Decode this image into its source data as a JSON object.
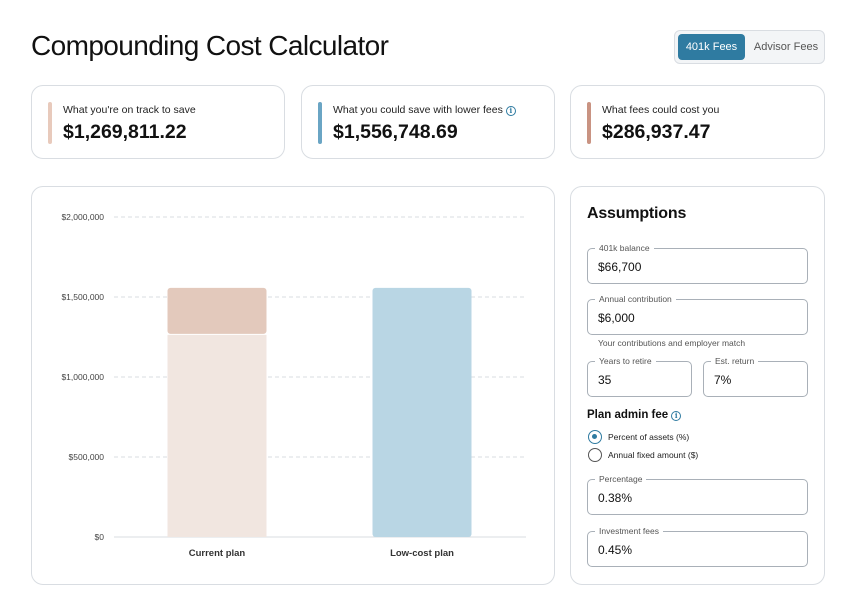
{
  "header": {
    "title": "Compounding Cost Calculator",
    "tabs": [
      {
        "label": "401k Fees",
        "active": true
      },
      {
        "label": "Advisor Fees",
        "active": false
      }
    ]
  },
  "summary": [
    {
      "label": "What you're on track to save",
      "value": "$1,269,811.22",
      "accent": "#e8cabc"
    },
    {
      "label": "What you could save with lower fees",
      "value": "$1,556,748.69",
      "accent": "#6aa5c4",
      "info_icon": "info-icon"
    },
    {
      "label": "What fees could cost you",
      "value": "$286,937.47",
      "accent": "#c99382"
    }
  ],
  "chart_data": {
    "type": "bar",
    "stacked": true,
    "categories": [
      "Current plan",
      "Low-cost plan"
    ],
    "series": [
      {
        "values": [
          1269811.22,
          1556748.69
        ],
        "colors": [
          "#f1e6e0",
          "#b9d6e4"
        ]
      },
      {
        "values": [
          286937.47,
          0
        ],
        "colors": [
          "#e3c9bc",
          "#b9d6e4"
        ]
      }
    ],
    "y_ticks": [
      "$0",
      "$500,000",
      "$1,000,000",
      "$1,500,000",
      "$2,000,000"
    ],
    "ylim": [
      0,
      2000000
    ],
    "grid": true
  },
  "assumptions": {
    "title": "Assumptions",
    "balance": {
      "label": "401k balance",
      "value": "$66,700"
    },
    "contribution": {
      "label": "Annual contribution",
      "value": "$6,000",
      "helper": "Your contributions and employer match"
    },
    "years": {
      "label": "Years to retire",
      "value": "35"
    },
    "return": {
      "label": "Est. return",
      "value": "7%"
    },
    "admin_fee": {
      "label": "Plan admin fee",
      "options": [
        {
          "label": "Percent of assets (%)",
          "checked": true
        },
        {
          "label": "Annual fixed amount ($)",
          "checked": false
        }
      ]
    },
    "percentage": {
      "label": "Percentage",
      "value": "0.38%"
    },
    "investment": {
      "label": "Investment fees",
      "value": "0.45%"
    }
  }
}
